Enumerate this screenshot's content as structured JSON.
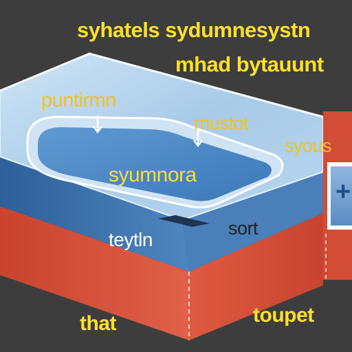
{
  "header": {
    "title": "syhatels sydumnesystn",
    "subtitle": "mhad bytauunt"
  },
  "labels": {
    "top_left": "puntirmn",
    "top_middle": "rnustot",
    "right_side": "syous",
    "inner_tray": "syumnora",
    "front_edge": "teytln",
    "middle_right": "sort",
    "bottom_left": "that",
    "bottom_right": "toupet"
  },
  "icons": {
    "panel_symbol": "+"
  },
  "colors": {
    "background": "#3d3d3d",
    "top_face": "#b9d6ee",
    "side_face": "#d5503a",
    "label_text": "#ffe02a"
  }
}
